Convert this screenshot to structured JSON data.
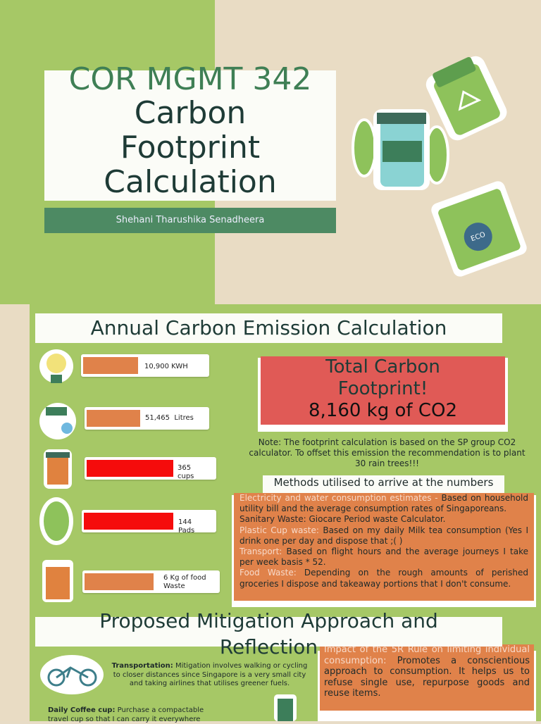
{
  "title_slide": {
    "course": "COR MGMT 342",
    "title": "Carbon Footprint Calculation",
    "author": "Shehani Tharushika Senadheera"
  },
  "emission_slide": {
    "heading": "Annual Carbon Emission Calculation",
    "items": [
      "10,900 KWH",
      "51,465  Litres",
      "365 cups",
      "144 Pads",
      "6 Kg of food Waste"
    ],
    "total": {
      "title": "Total Carbon Footprint!",
      "value": "8,160 kg of CO2"
    },
    "note": "Note: The footprint calculation is based on the SP group CO2 calculator. To offset this emission the recommendation is to plant 30 rain trees!!!",
    "methods_heading": "Methods utilised to arrive at the numbers",
    "methods": [
      {
        "label": "Electricity and water consumption estimates -",
        "text": "Based on household utility bill and the average consumption rates of Singaporeans."
      },
      {
        "label": "Sanitary Waste:",
        "text": "Giocare Period waste Calculator."
      },
      {
        "label": "Plastic Cup waste:",
        "text": "Based on my daily Milk tea consumption (Yes I drink one per day and dispose that ;( )"
      },
      {
        "label": "Transport:",
        "text": "Based on flight hours and the average journeys I take per week basis * 52."
      },
      {
        "label": "Food Waste:",
        "text": "Depending on the rough amounts of perished groceries I dispose and takeaway portions that I don't consume."
      }
    ]
  },
  "mitigation_slide": {
    "heading": "Proposed Mitigation Approach and Reflection",
    "items": [
      {
        "label": "Transportation:",
        "text": "Mitigation involves walking or cycling to closer distances since Singapore is a very small city and taking airlines that utilises greener fuels."
      },
      {
        "label": "Daily Coffee cup:",
        "text": "Purchase a compactable travel cup so that I can carry it everywhere"
      }
    ],
    "reflection": {
      "label": "Impact of the 5R Rule on limiting individual consumption:",
      "text": "Promotes a conscientious approach to consumption. It helps us to refuse single use, repurpose goods and reuse items."
    }
  }
}
